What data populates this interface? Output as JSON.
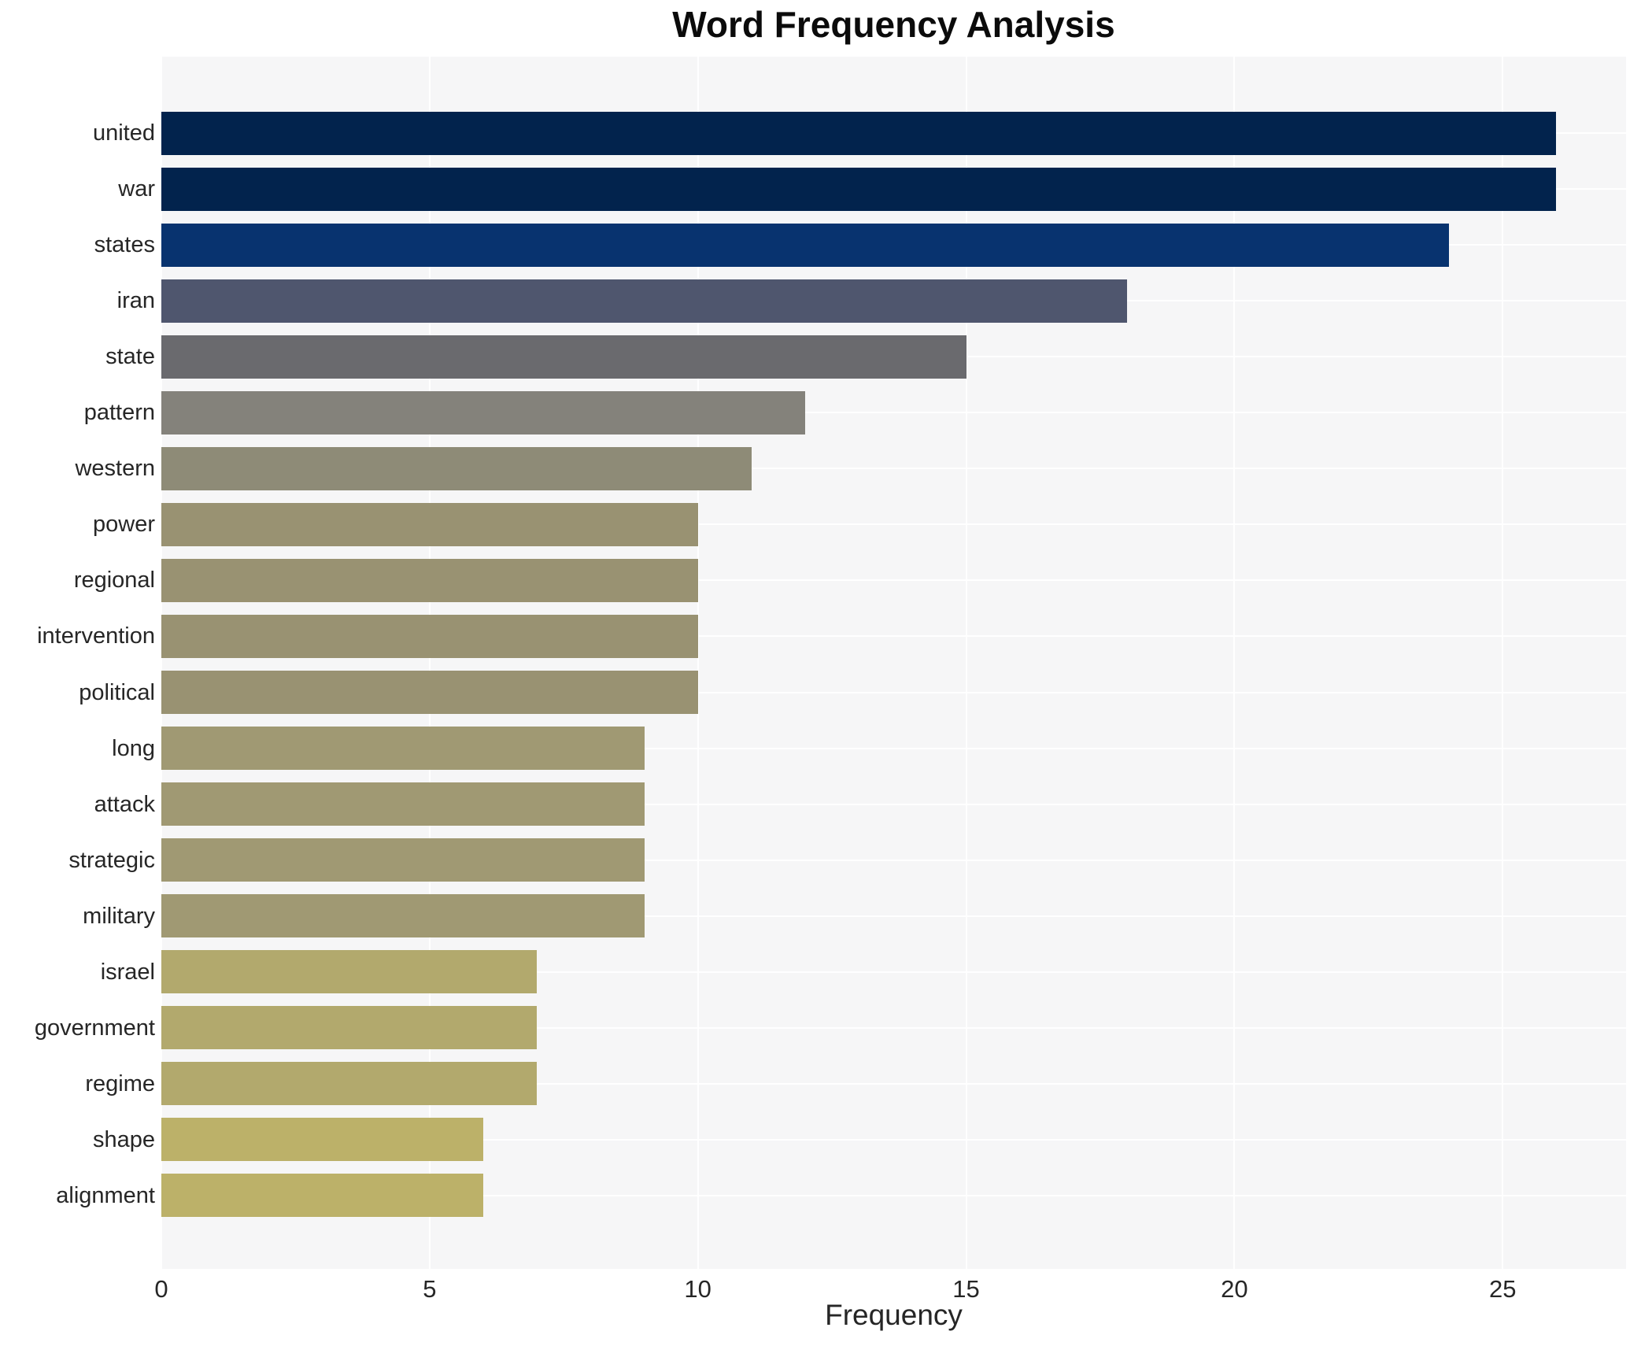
{
  "chart_data": {
    "type": "bar",
    "orientation": "horizontal",
    "title": "Word Frequency Analysis",
    "xlabel": "Frequency",
    "ylabel": "",
    "categories": [
      "united",
      "war",
      "states",
      "iran",
      "state",
      "pattern",
      "western",
      "power",
      "regional",
      "intervention",
      "political",
      "long",
      "attack",
      "strategic",
      "military",
      "israel",
      "government",
      "regime",
      "shape",
      "alignment"
    ],
    "values": [
      26,
      26,
      24,
      18,
      15,
      12,
      11,
      10,
      10,
      10,
      10,
      9,
      9,
      9,
      9,
      7,
      7,
      7,
      6,
      6
    ],
    "bar_colors": [
      "#02234d",
      "#02234d",
      "#08336f",
      "#4f566e",
      "#6a6a6e",
      "#84827b",
      "#8e8b77",
      "#999272",
      "#999272",
      "#999272",
      "#999272",
      "#a09973",
      "#a09973",
      "#a09973",
      "#a09973",
      "#b2a96d",
      "#b2a96d",
      "#b2a96d",
      "#bcb169",
      "#bcb169"
    ],
    "xticks": [
      0,
      5,
      10,
      15,
      20,
      25
    ],
    "xlim": [
      0,
      27.3
    ],
    "grid": true,
    "legend_position": "none",
    "plot_background": "#f6f6f7",
    "grid_color": "#ffffff",
    "text_color": "#262626",
    "title_color": "#0b0b0b"
  }
}
